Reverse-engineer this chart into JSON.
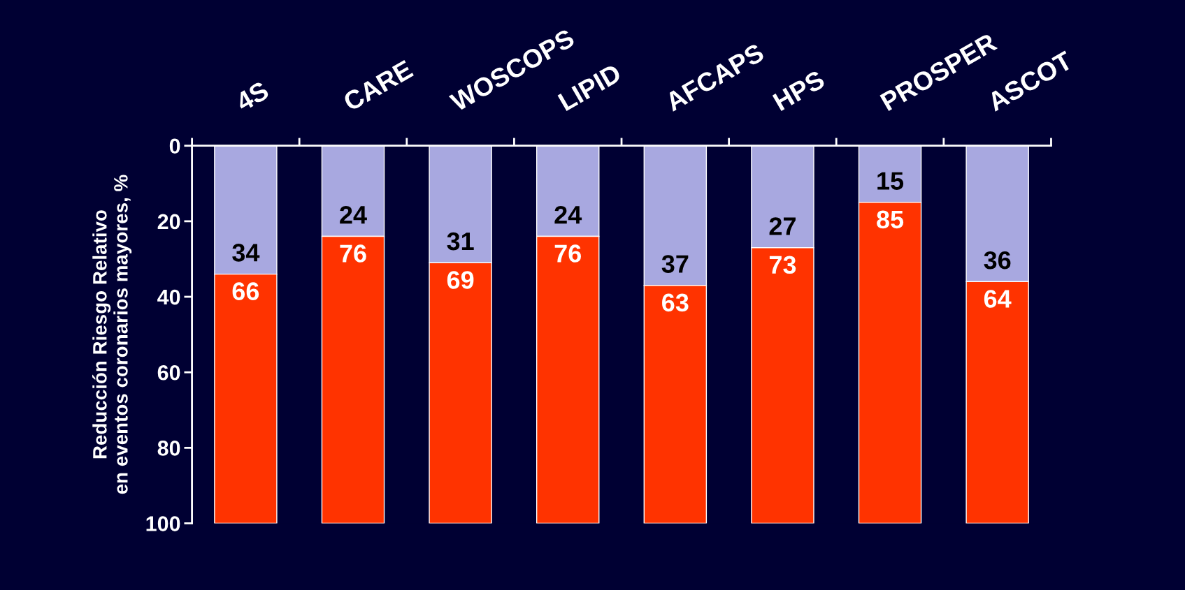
{
  "chart_data": {
    "type": "bar",
    "stacked": true,
    "ylabel": "Reducción Riesgo Relativo\nen eventos coronarios mayores, %",
    "categories": [
      "4S",
      "CARE",
      "WOSCOPS",
      "LIPID",
      "AFCAPS",
      "HPS",
      "PROSPER",
      "ASCOT"
    ],
    "series": [
      {
        "color": "#a8a8e0",
        "values": [
          34,
          24,
          31,
          24,
          37,
          27,
          15,
          36
        ]
      },
      {
        "color": "#ff3300",
        "values": [
          66,
          76,
          69,
          76,
          63,
          73,
          85,
          64
        ]
      }
    ],
    "ylim": [
      100,
      0
    ],
    "yticks": [
      0,
      20,
      40,
      60,
      80,
      100
    ],
    "data_labels": true,
    "grid": false,
    "legend": false
  }
}
